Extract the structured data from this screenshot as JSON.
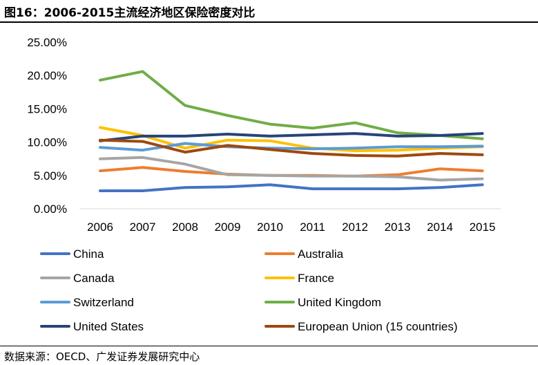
{
  "header": {
    "title": "图16：2006-2015主流经济地区保险密度对比"
  },
  "footer": {
    "source": "数据来源：OECD、广发证券发展研究中心"
  },
  "chart_data": {
    "type": "line",
    "title": "",
    "xlabel": "",
    "ylabel": "",
    "ylim": [
      0,
      25
    ],
    "y_ticks": [
      "0.00%",
      "5.00%",
      "10.00%",
      "15.00%",
      "20.00%",
      "25.00%"
    ],
    "y_tick_values": [
      0,
      5,
      10,
      15,
      20,
      25
    ],
    "grid": false,
    "legend_placement": "bottom",
    "categories": [
      "2006",
      "2007",
      "2008",
      "2009",
      "2010",
      "2011",
      "2012",
      "2013",
      "2014",
      "2015"
    ],
    "series": [
      {
        "name": "China",
        "color": "#4472C4",
        "values": [
          2.7,
          2.7,
          3.2,
          3.3,
          3.6,
          3.0,
          3.0,
          3.0,
          3.2,
          3.6
        ]
      },
      {
        "name": "Australia",
        "color": "#ED7D31",
        "values": [
          5.7,
          6.2,
          5.6,
          5.2,
          5.0,
          5.0,
          4.9,
          5.1,
          6.0,
          5.7
        ]
      },
      {
        "name": "Canada",
        "color": "#A5A5A5",
        "values": [
          7.5,
          7.7,
          6.7,
          5.1,
          5.0,
          4.9,
          4.9,
          4.8,
          4.3,
          4.5
        ]
      },
      {
        "name": "France",
        "color": "#FFC000",
        "values": [
          12.2,
          11.0,
          9.1,
          10.3,
          10.2,
          9.1,
          8.7,
          8.8,
          9.1,
          9.3
        ]
      },
      {
        "name": "Switzerland",
        "color": "#5B9BD5",
        "values": [
          9.2,
          8.8,
          9.8,
          9.3,
          9.1,
          9.0,
          9.1,
          9.3,
          9.3,
          9.4
        ]
      },
      {
        "name": "United Kingdom",
        "color": "#70AD47",
        "values": [
          19.3,
          20.6,
          15.5,
          14.0,
          12.7,
          12.1,
          12.9,
          11.4,
          11.0,
          10.5
        ]
      },
      {
        "name": "United States",
        "color": "#264478",
        "values": [
          10.2,
          10.9,
          10.9,
          11.2,
          10.9,
          11.1,
          11.3,
          10.9,
          11.0,
          11.3
        ]
      },
      {
        "name": "European Union (15 countries)",
        "color": "#9E480E",
        "values": [
          10.3,
          10.1,
          8.5,
          9.5,
          8.9,
          8.3,
          8.0,
          7.9,
          8.3,
          8.1
        ]
      }
    ]
  }
}
